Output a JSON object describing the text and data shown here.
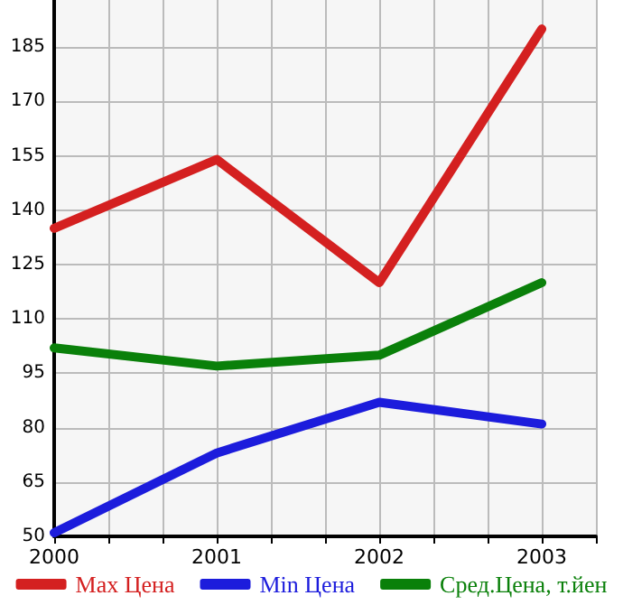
{
  "chart_data": {
    "type": "line",
    "x": [
      2000,
      2001,
      2002,
      2003
    ],
    "series": [
      {
        "name": "Max Цена",
        "color": "#d42020",
        "values": [
          135,
          154,
          120,
          190
        ]
      },
      {
        "name": "Min Цена",
        "color": "#1c1cdc",
        "values": [
          51,
          73,
          87,
          81
        ]
      },
      {
        "name": "Сред.Цена, т.йен",
        "color": "#0a800a",
        "values": [
          102,
          97,
          100,
          120
        ]
      }
    ],
    "xlim": [
      2000,
      2003.333
    ],
    "xticks": [
      2000,
      {
        "value": 2000.333,
        "label": null
      },
      {
        "value": 2000.667,
        "label": null
      },
      2001,
      {
        "value": 2001.333,
        "label": null
      },
      {
        "value": 2001.667,
        "label": null
      },
      2002,
      {
        "value": 2002.333,
        "label": null
      },
      {
        "value": 2002.667,
        "label": null
      },
      2003,
      {
        "value": 2003.333,
        "label": null
      }
    ],
    "ylim": [
      50,
      198
    ],
    "yticks": [
      50,
      65,
      80,
      95,
      110,
      125,
      140,
      155,
      170,
      185
    ],
    "grid": true,
    "legend": "bottom",
    "marker": "none",
    "line_style": "solid"
  }
}
